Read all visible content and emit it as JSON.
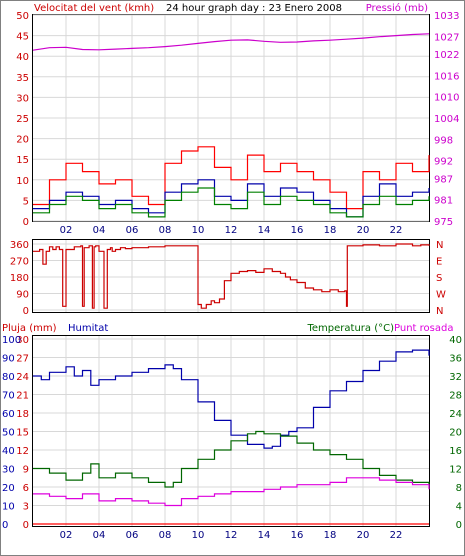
{
  "header": {
    "left_label": "Velocitat del vent (kmh)",
    "title": "24 hour graph day : 23 Enero 2008",
    "right_label": "Pressió (mb)"
  },
  "panel3_header": {
    "rain_label": "Pluja (mm)",
    "humidity_label": "Humitat",
    "temp_label": "Temperatura (°C)",
    "dew_label": "Punt rosada"
  },
  "colors": {
    "wind_gust": "#ff0000",
    "wind_avg": "#008000",
    "wind_mean": "#0000aa",
    "pressure": "#cc00cc",
    "direction": "#cc0000",
    "humidity": "#0000aa",
    "temperature": "#006600",
    "dew_point": "#dd00dd",
    "rain": "#ff0000",
    "axis_left": "#cc0000",
    "axis_right": "#cc00cc",
    "axis_green": "#006600",
    "axis_blue": "#0000aa",
    "x_ticks": "#000080"
  },
  "x_axis": {
    "tick_labels": [
      "02",
      "04",
      "06",
      "08",
      "10",
      "12",
      "14",
      "16",
      "18",
      "20",
      "22"
    ],
    "tick_hours": [
      2,
      4,
      6,
      8,
      10,
      12,
      14,
      16,
      18,
      20,
      22
    ],
    "range_hours": [
      0,
      24
    ]
  },
  "chart_data": [
    {
      "type": "line",
      "panel": "wind_pressure",
      "x_unit": "hour",
      "ylim_left": [
        0,
        50
      ],
      "ylim_right": [
        975,
        1033
      ],
      "y_ticks_left": [
        "0",
        "5",
        "10",
        "15",
        "20",
        "25",
        "30",
        "35",
        "40",
        "45",
        "50"
      ],
      "y_ticks_right": [
        "975",
        "981",
        "987",
        "992",
        "998",
        "1004",
        "1010",
        "1016",
        "1022",
        "1027",
        "1033"
      ],
      "y_ticks_right_values": [
        975,
        981,
        987,
        992,
        998,
        1004,
        1010,
        1016,
        1022,
        1027,
        1033
      ],
      "grid": true,
      "series": [
        {
          "key": "pressure",
          "axis": "right",
          "x": [
            0,
            1,
            2,
            3,
            4,
            5,
            6,
            7,
            8,
            9,
            10,
            11,
            12,
            13,
            14,
            15,
            16,
            17,
            18,
            19,
            20,
            21,
            22,
            23,
            24
          ],
          "values": [
            1023.1,
            1023.8,
            1023.9,
            1023.3,
            1023.2,
            1023.4,
            1023.6,
            1023.8,
            1024.1,
            1024.5,
            1025.0,
            1025.5,
            1025.9,
            1026.0,
            1025.6,
            1025.3,
            1025.4,
            1025.7,
            1025.9,
            1026.2,
            1026.5,
            1026.9,
            1027.2,
            1027.5,
            1027.7
          ]
        },
        {
          "key": "wind_gust",
          "axis": "left",
          "x": [
            0,
            1,
            2,
            3,
            4,
            5,
            6,
            7,
            8,
            9,
            10,
            11,
            12,
            13,
            14,
            15,
            16,
            17,
            18,
            19,
            20,
            21,
            22,
            23,
            24
          ],
          "values": [
            4,
            10,
            14,
            12,
            9,
            10,
            6,
            4,
            14,
            17,
            18,
            13,
            10,
            16,
            12,
            14,
            12,
            10,
            7,
            3,
            12,
            10,
            14,
            12,
            16
          ]
        },
        {
          "key": "wind_mean",
          "axis": "left",
          "x": [
            0,
            1,
            2,
            3,
            4,
            5,
            6,
            7,
            8,
            9,
            10,
            11,
            12,
            13,
            14,
            15,
            16,
            17,
            18,
            19,
            20,
            21,
            22,
            23,
            24
          ],
          "values": [
            3,
            5,
            7,
            6,
            4,
            5,
            3,
            2,
            7,
            9,
            10,
            6,
            5,
            9,
            6,
            8,
            7,
            5,
            3,
            1,
            6,
            9,
            6,
            7,
            8
          ]
        },
        {
          "key": "wind_avg",
          "axis": "left",
          "x": [
            0,
            1,
            2,
            3,
            4,
            5,
            6,
            7,
            8,
            9,
            10,
            11,
            12,
            13,
            14,
            15,
            16,
            17,
            18,
            19,
            20,
            21,
            22,
            23,
            24
          ],
          "values": [
            2,
            4,
            6,
            5,
            3,
            4,
            2,
            1,
            5,
            7,
            8,
            4,
            3,
            7,
            4,
            6,
            5,
            4,
            2,
            1,
            4,
            6,
            4,
            5,
            6
          ]
        }
      ]
    },
    {
      "type": "line",
      "panel": "wind_direction",
      "x_unit": "hour",
      "ylim": [
        0,
        360
      ],
      "y_ticks": [
        "0",
        "90",
        "180",
        "270",
        "360"
      ],
      "y_ticks_values": [
        0,
        90,
        180,
        270,
        360
      ],
      "y_ticks_right": [
        "N",
        "W",
        "S",
        "E",
        "N"
      ],
      "series": [
        {
          "key": "direction",
          "x": [
            0,
            0.4,
            0.6,
            0.8,
            1.0,
            1.2,
            1.4,
            1.6,
            1.8,
            2.0,
            2.5,
            2.9,
            3.0,
            3.1,
            3.4,
            3.6,
            3.7,
            3.8,
            4.0,
            4.3,
            4.5,
            4.7,
            4.8,
            5.0,
            5.3,
            5.6,
            6.0,
            7.0,
            8.0,
            9.0,
            9.9,
            10.0,
            10.2,
            10.5,
            10.8,
            11.0,
            11.3,
            11.6,
            12.0,
            12.5,
            13.0,
            13.5,
            14.0,
            14.5,
            15.0,
            15.3,
            15.6,
            16.0,
            16.5,
            17.0,
            17.5,
            18.0,
            18.5,
            18.9,
            19.0,
            19.05,
            20.0,
            21.0,
            22.0,
            23.0,
            23.5,
            24.0
          ],
          "values": [
            320,
            330,
            250,
            320,
            345,
            330,
            345,
            330,
            20,
            330,
            345,
            350,
            20,
            340,
            350,
            10,
            345,
            350,
            320,
            10,
            330,
            340,
            320,
            330,
            340,
            335,
            340,
            345,
            350,
            350,
            350,
            30,
            10,
            30,
            50,
            40,
            60,
            160,
            200,
            210,
            215,
            205,
            225,
            210,
            200,
            180,
            165,
            150,
            120,
            110,
            100,
            110,
            100,
            105,
            20,
            350,
            355,
            350,
            360,
            350,
            355,
            350
          ]
        }
      ]
    },
    {
      "type": "line",
      "panel": "rain_humidity_temp",
      "x_unit": "hour",
      "ylim_rain": [
        0,
        30
      ],
      "ylim_humidity": [
        0,
        100
      ],
      "ylim_temp": [
        0,
        40
      ],
      "y_ticks_rain": [
        "0",
        "3",
        "6",
        "9",
        "12",
        "15",
        "18",
        "21",
        "24",
        "27",
        "30"
      ],
      "y_ticks_humidity": [
        "0",
        "10",
        "20",
        "30",
        "40",
        "50",
        "60",
        "70",
        "80",
        "90",
        "100"
      ],
      "y_ticks_temp": [
        "0",
        "4",
        "8",
        "12",
        "16",
        "20",
        "24",
        "28",
        "32",
        "36",
        "40"
      ],
      "series": [
        {
          "key": "humidity",
          "axis": "humidity",
          "x": [
            0,
            0.5,
            1,
            2,
            2.5,
            3,
            3.5,
            4,
            5,
            6,
            7,
            8,
            8.5,
            9,
            10,
            11,
            12,
            13,
            14,
            14.5,
            15,
            15.5,
            16,
            17,
            18,
            19,
            20,
            21,
            22,
            23,
            24
          ],
          "values": [
            80,
            78,
            82,
            85,
            80,
            83,
            75,
            78,
            80,
            82,
            84,
            86,
            84,
            78,
            66,
            56,
            48,
            43,
            41,
            42,
            48,
            50,
            52,
            63,
            72,
            77,
            83,
            88,
            93,
            94,
            91
          ]
        },
        {
          "key": "temperature",
          "axis": "temp",
          "x": [
            0,
            1,
            2,
            3,
            3.5,
            4,
            5,
            6,
            7,
            8,
            8.5,
            9,
            10,
            11,
            12,
            13,
            13.5,
            14,
            15,
            16,
            17,
            18,
            19,
            20,
            21,
            22,
            23,
            24
          ],
          "values": [
            12,
            11,
            9.5,
            11,
            13,
            10,
            11,
            10,
            9,
            8,
            9,
            12,
            14,
            16,
            18,
            19.5,
            20,
            19.5,
            19,
            17.5,
            16,
            15,
            14,
            12,
            10.5,
            9.5,
            9,
            8.5
          ]
        },
        {
          "key": "dew_point",
          "axis": "temp",
          "x": [
            0,
            1,
            2,
            3,
            4,
            5,
            6,
            7,
            8,
            9,
            10,
            11,
            12,
            13,
            14,
            15,
            16,
            17,
            18,
            19,
            20,
            21,
            22,
            23,
            24
          ],
          "values": [
            6.5,
            6,
            5.5,
            6.5,
            5,
            5.5,
            5,
            4.5,
            4,
            5.5,
            6,
            6.5,
            7,
            7,
            7.5,
            8,
            8.5,
            8.5,
            9,
            10,
            10,
            9.5,
            9,
            8.5,
            7.5
          ]
        },
        {
          "key": "rain",
          "axis": "rain",
          "x": [
            0,
            24
          ],
          "values": [
            0,
            0
          ]
        }
      ]
    }
  ]
}
